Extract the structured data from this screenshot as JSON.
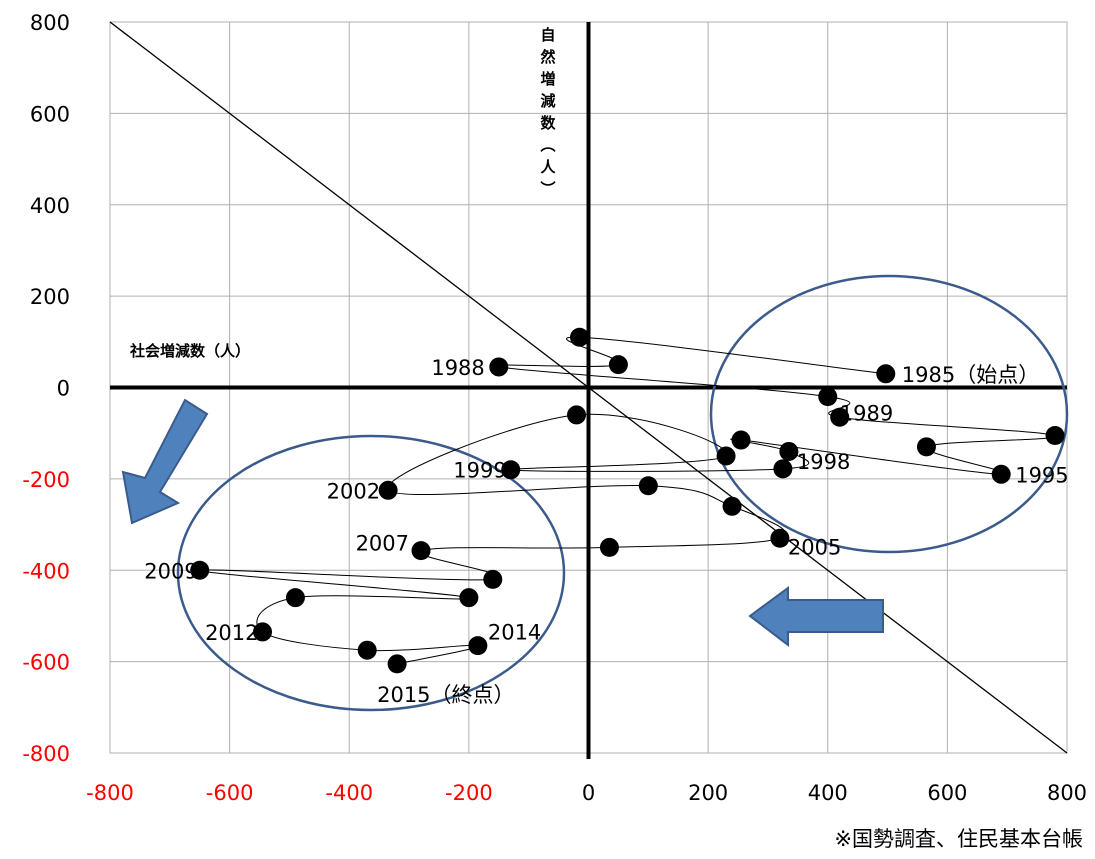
{
  "chart_data": {
    "type": "scatter",
    "title": "",
    "xlabel": "社会増減数（人）",
    "ylabel": "自然増減数（人）",
    "xlim": [
      -800,
      800
    ],
    "ylim": [
      -800,
      800
    ],
    "x_ticks": [
      "-800",
      "-600",
      "-400",
      "-200",
      "0",
      "200",
      "400",
      "600",
      "800"
    ],
    "y_ticks": [
      "800",
      "600",
      "400",
      "200",
      "0",
      "-200",
      "-400",
      "-600",
      "-800"
    ],
    "negative_tick_color": "#ff0000",
    "grid": true,
    "reference_line": {
      "from": [
        -800,
        800
      ],
      "to": [
        800,
        -800
      ]
    },
    "points": [
      {
        "x": 497,
        "y": 30,
        "label": "1985（始点）"
      },
      {
        "x": -15,
        "y": 110,
        "label": ""
      },
      {
        "x": 50,
        "y": 50,
        "label": ""
      },
      {
        "x": -150,
        "y": 45,
        "label": "1988"
      },
      {
        "x": 400,
        "y": -20,
        "label": "1989"
      },
      {
        "x": 420,
        "y": -65,
        "label": ""
      },
      {
        "x": 780,
        "y": -105,
        "label": ""
      },
      {
        "x": 565,
        "y": -130,
        "label": ""
      },
      {
        "x": 690,
        "y": -190,
        "label": "1995"
      },
      {
        "x": 255,
        "y": -115,
        "label": ""
      },
      {
        "x": 335,
        "y": -140,
        "label": ""
      },
      {
        "x": 325,
        "y": -178,
        "label": "1998"
      },
      {
        "x": -130,
        "y": -180,
        "label": "1999"
      },
      {
        "x": 230,
        "y": -150,
        "label": ""
      },
      {
        "x": -20,
        "y": -60,
        "label": ""
      },
      {
        "x": -335,
        "y": -225,
        "label": "2002"
      },
      {
        "x": 100,
        "y": -215,
        "label": ""
      },
      {
        "x": 240,
        "y": -260,
        "label": ""
      },
      {
        "x": 320,
        "y": -330,
        "label": "2005"
      },
      {
        "x": 35,
        "y": -350,
        "label": ""
      },
      {
        "x": -280,
        "y": -357,
        "label": "2007"
      },
      {
        "x": -160,
        "y": -420,
        "label": ""
      },
      {
        "x": -650,
        "y": -400,
        "label": "2009"
      },
      {
        "x": -200,
        "y": -460,
        "label": ""
      },
      {
        "x": -490,
        "y": -460,
        "label": ""
      },
      {
        "x": -545,
        "y": -535,
        "label": "2012"
      },
      {
        "x": -370,
        "y": -575,
        "label": ""
      },
      {
        "x": -185,
        "y": -565,
        "label": "2014"
      },
      {
        "x": -320,
        "y": -605,
        "label": "2015（終点）"
      }
    ],
    "source_note": "※国勢調査、住民基本台帳"
  }
}
